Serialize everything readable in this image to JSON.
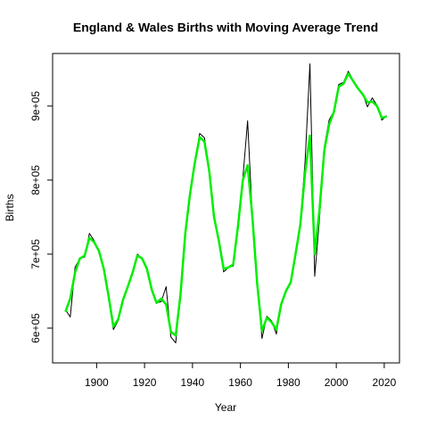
{
  "chart_data": {
    "type": "line",
    "title": "England & Wales Births with Moving Average Trend",
    "x_label": "Year",
    "y_label": "Births",
    "x": [
      1887,
      1889,
      1891,
      1893,
      1895,
      1897,
      1899,
      1901,
      1903,
      1905,
      1907,
      1909,
      1911,
      1913,
      1915,
      1917,
      1919,
      1921,
      1923,
      1925,
      1927,
      1929,
      1931,
      1933,
      1935,
      1937,
      1939,
      1941,
      1943,
      1945,
      1947,
      1949,
      1951,
      1953,
      1955,
      1957,
      1959,
      1961,
      1963,
      1965,
      1967,
      1969,
      1971,
      1973,
      1975,
      1977,
      1979,
      1981,
      1983,
      1985,
      1987,
      1989,
      1991,
      1993,
      1995,
      1997,
      1999,
      2001,
      2003,
      2005,
      2007,
      2009,
      2011,
      2013,
      2015,
      2017,
      2019,
      2021
    ],
    "series": [
      {
        "name": "Births",
        "color": "#000000",
        "width": 1,
        "values": [
          625000,
          615000,
          682000,
          694000,
          696000,
          728000,
          718000,
          704000,
          682000,
          640000,
          598000,
          610000,
          640000,
          655000,
          676000,
          700000,
          694000,
          682000,
          652000,
          634000,
          636000,
          656000,
          588000,
          580000,
          646000,
          730000,
          784000,
          826000,
          863000,
          857000,
          814000,
          748000,
          720000,
          676000,
          682000,
          684000,
          742000,
          802000,
          880000,
          748000,
          658000,
          586000,
          616000,
          610000,
          592000,
          634000,
          652000,
          660000,
          700000,
          742000,
          826000,
          957000,
          670000,
          748000,
          845000,
          881000,
          893000,
          929000,
          932000,
          947000,
          935000,
          925000,
          917000,
          899000,
          911000,
          901000,
          881000,
          887000
        ]
      },
      {
        "name": "Moving Average",
        "color": "#00ee00",
        "width": 2.5,
        "values": [
          622000,
          640000,
          675000,
          694000,
          698000,
          722000,
          716000,
          704000,
          680000,
          643000,
          602000,
          612000,
          638000,
          656000,
          675000,
          698000,
          694000,
          680000,
          652000,
          634000,
          640000,
          632000,
          595000,
          590000,
          645000,
          728000,
          782000,
          824000,
          858000,
          852000,
          812000,
          750000,
          718000,
          680000,
          682000,
          686000,
          738000,
          800000,
          820000,
          750000,
          660000,
          596000,
          614000,
          608000,
          598000,
          632000,
          650000,
          662000,
          700000,
          740000,
          810000,
          860000,
          700000,
          760000,
          840000,
          875000,
          892000,
          926000,
          930000,
          944000,
          934000,
          924000,
          916000,
          905000,
          906000,
          900000,
          884000,
          886000
        ]
      }
    ],
    "xlim": [
      1881.64,
      2026.36
    ],
    "xticks": [
      1900,
      1920,
      1940,
      1960,
      1980,
      2000,
      2020
    ],
    "ylim": [
      553000,
      971000
    ],
    "yticks": [
      {
        "value": 600000,
        "label": "6e+05"
      },
      {
        "value": 700000,
        "label": "7e+05"
      },
      {
        "value": 800000,
        "label": "8e+05"
      },
      {
        "value": 900000,
        "label": "9e+05"
      }
    ]
  }
}
